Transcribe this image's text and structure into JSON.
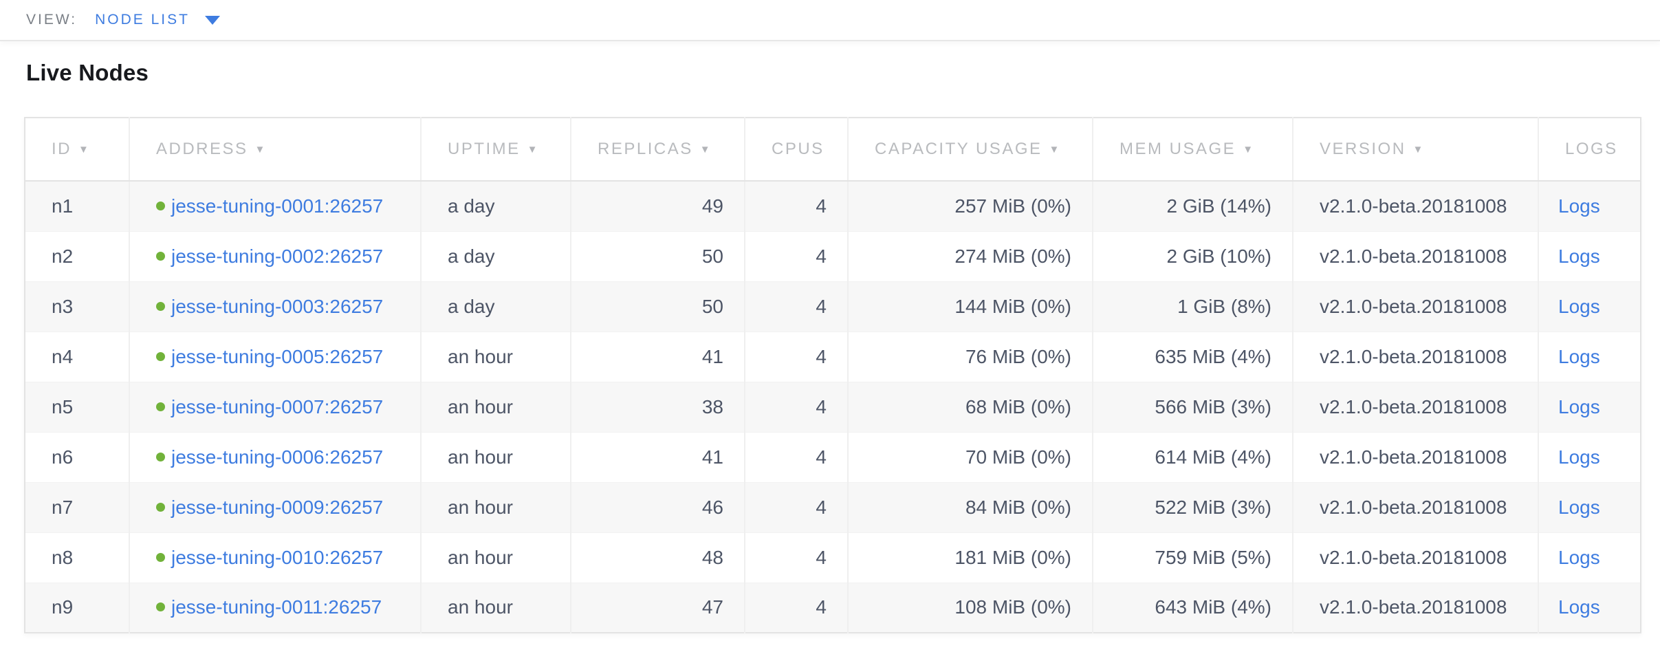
{
  "colors": {
    "link_blue": "#3e7ce0",
    "status_healthy_green": "#71b23a",
    "header_text_gray": "#b9bbbe",
    "body_text": "#4d5566",
    "row_alt_background": "#f7f7f7"
  },
  "view_bar": {
    "label": "VIEW:",
    "selected_view": "NODE LIST",
    "dropdown_icon": "caret-down-icon"
  },
  "page": {
    "title": "Live Nodes"
  },
  "table": {
    "sort_icon_glyph": "▼",
    "columns": [
      {
        "key": "id",
        "label": "ID",
        "sortable": true,
        "align": "left"
      },
      {
        "key": "address",
        "label": "ADDRESS",
        "sortable": true,
        "align": "left"
      },
      {
        "key": "uptime",
        "label": "UPTIME",
        "sortable": true,
        "align": "left"
      },
      {
        "key": "replicas",
        "label": "REPLICAS",
        "sortable": true,
        "align": "right"
      },
      {
        "key": "cpus",
        "label": "CPUS",
        "sortable": false,
        "align": "right"
      },
      {
        "key": "capacity",
        "label": "CAPACITY USAGE",
        "sortable": true,
        "align": "right"
      },
      {
        "key": "mem",
        "label": "MEM USAGE",
        "sortable": true,
        "align": "right"
      },
      {
        "key": "version",
        "label": "VERSION",
        "sortable": true,
        "align": "left"
      },
      {
        "key": "logs",
        "label": "LOGS",
        "sortable": false,
        "align": "left"
      }
    ],
    "rows": [
      {
        "id": "n1",
        "status": "healthy",
        "address": "jesse-tuning-0001:26257",
        "uptime": "a day",
        "replicas": "49",
        "cpus": "4",
        "capacity": "257 MiB (0%)",
        "mem": "2 GiB (14%)",
        "version": "v2.1.0-beta.20181008",
        "logs": "Logs"
      },
      {
        "id": "n2",
        "status": "healthy",
        "address": "jesse-tuning-0002:26257",
        "uptime": "a day",
        "replicas": "50",
        "cpus": "4",
        "capacity": "274 MiB (0%)",
        "mem": "2 GiB (10%)",
        "version": "v2.1.0-beta.20181008",
        "logs": "Logs"
      },
      {
        "id": "n3",
        "status": "healthy",
        "address": "jesse-tuning-0003:26257",
        "uptime": "a day",
        "replicas": "50",
        "cpus": "4",
        "capacity": "144 MiB (0%)",
        "mem": "1 GiB (8%)",
        "version": "v2.1.0-beta.20181008",
        "logs": "Logs"
      },
      {
        "id": "n4",
        "status": "healthy",
        "address": "jesse-tuning-0005:26257",
        "uptime": "an hour",
        "replicas": "41",
        "cpus": "4",
        "capacity": "76 MiB (0%)",
        "mem": "635 MiB (4%)",
        "version": "v2.1.0-beta.20181008",
        "logs": "Logs"
      },
      {
        "id": "n5",
        "status": "healthy",
        "address": "jesse-tuning-0007:26257",
        "uptime": "an hour",
        "replicas": "38",
        "cpus": "4",
        "capacity": "68 MiB (0%)",
        "mem": "566 MiB (3%)",
        "version": "v2.1.0-beta.20181008",
        "logs": "Logs"
      },
      {
        "id": "n6",
        "status": "healthy",
        "address": "jesse-tuning-0006:26257",
        "uptime": "an hour",
        "replicas": "41",
        "cpus": "4",
        "capacity": "70 MiB (0%)",
        "mem": "614 MiB (4%)",
        "version": "v2.1.0-beta.20181008",
        "logs": "Logs"
      },
      {
        "id": "n7",
        "status": "healthy",
        "address": "jesse-tuning-0009:26257",
        "uptime": "an hour",
        "replicas": "46",
        "cpus": "4",
        "capacity": "84 MiB (0%)",
        "mem": "522 MiB (3%)",
        "version": "v2.1.0-beta.20181008",
        "logs": "Logs"
      },
      {
        "id": "n8",
        "status": "healthy",
        "address": "jesse-tuning-0010:26257",
        "uptime": "an hour",
        "replicas": "48",
        "cpus": "4",
        "capacity": "181 MiB (0%)",
        "mem": "759 MiB (5%)",
        "version": "v2.1.0-beta.20181008",
        "logs": "Logs"
      },
      {
        "id": "n9",
        "status": "healthy",
        "address": "jesse-tuning-0011:26257",
        "uptime": "an hour",
        "replicas": "47",
        "cpus": "4",
        "capacity": "108 MiB (0%)",
        "mem": "643 MiB (4%)",
        "version": "v2.1.0-beta.20181008",
        "logs": "Logs"
      }
    ]
  }
}
